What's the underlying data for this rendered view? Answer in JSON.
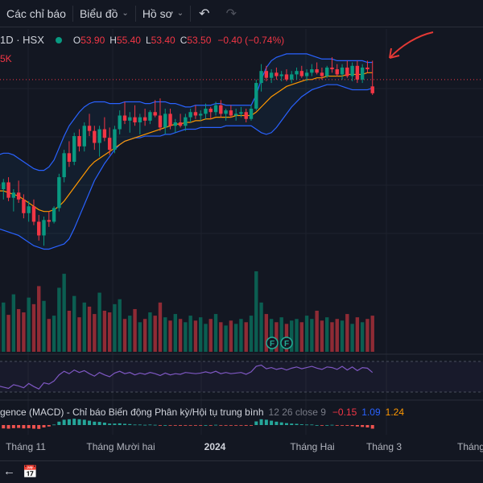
{
  "toolbar": {
    "indicators_label": "Các chỉ báo",
    "chart_label": "Biểu đồ",
    "profile_label": "Hồ sơ",
    "undo_icon": "undo-icon",
    "redo_icon": "redo-icon"
  },
  "legend": {
    "symbol": "1D · HSX",
    "o_key": "O",
    "o_val": "53.90",
    "h_key": "H",
    "h_val": "55.40",
    "l_key": "L",
    "l_val": "53.40",
    "c_key": "C",
    "c_val": "53.50",
    "change": "−0.40 (−0.74%)",
    "volume": "5K",
    "status_color": "#089981"
  },
  "macd": {
    "name": "gence (MACD) - Chỉ báo Biến động Phân kỳ/Hội tụ trung bình",
    "params": "12 26 close 9",
    "hist": "−0.15",
    "macd": "1.09",
    "signal": "1.24"
  },
  "markers": [
    "F",
    "F"
  ],
  "xaxis": [
    {
      "label": "Tháng 11",
      "bold": false
    },
    {
      "label": "Tháng Mười hai",
      "bold": false
    },
    {
      "label": "2024",
      "bold": true
    },
    {
      "label": "Tháng Hai",
      "bold": false
    },
    {
      "label": "Tháng 3",
      "bold": false
    },
    {
      "label": "Tháng",
      "bold": false
    }
  ],
  "colors": {
    "up": "#089981",
    "down": "#f23645",
    "band": "#2962ff",
    "ma": "#ff9800",
    "rsi": "#7e57c2",
    "annotation": "#e53935"
  },
  "chart_data": {
    "type": "candlestick",
    "candles": [
      [
        48.2,
        48.8,
        47.5,
        47.9
      ],
      [
        47.9,
        48.5,
        47.3,
        48.3
      ],
      [
        48.3,
        48.6,
        47.2,
        47.4
      ],
      [
        47.4,
        47.9,
        46.6,
        47.7
      ],
      [
        47.7,
        48.4,
        47.1,
        47.3
      ],
      [
        47.3,
        47.6,
        46.2,
        46.5
      ],
      [
        46.5,
        47.2,
        46.0,
        46.9
      ],
      [
        46.9,
        47.3,
        45.8,
        46.0
      ],
      [
        46.0,
        46.4,
        44.9,
        45.2
      ],
      [
        45.2,
        46.3,
        44.6,
        46.1
      ],
      [
        46.1,
        46.6,
        45.7,
        46.0
      ],
      [
        46.0,
        46.9,
        45.9,
        46.8
      ],
      [
        46.8,
        48.8,
        46.6,
        48.6
      ],
      [
        48.6,
        50.2,
        48.3,
        50.0
      ],
      [
        50.0,
        50.7,
        49.2,
        49.5
      ],
      [
        49.5,
        51.2,
        49.3,
        51.0
      ],
      [
        51.0,
        51.4,
        50.1,
        50.4
      ],
      [
        50.4,
        51.8,
        50.1,
        51.6
      ],
      [
        51.6,
        52.3,
        51.0,
        51.3
      ],
      [
        51.3,
        51.6,
        50.2,
        50.6
      ],
      [
        50.6,
        51.6,
        49.8,
        51.4
      ],
      [
        51.4,
        52.1,
        50.7,
        50.9
      ],
      [
        50.9,
        51.5,
        49.9,
        50.2
      ],
      [
        50.2,
        51.6,
        50.0,
        51.4
      ],
      [
        51.4,
        52.5,
        51.1,
        52.2
      ],
      [
        52.2,
        53.0,
        51.7,
        51.9
      ],
      [
        51.9,
        52.4,
        51.2,
        52.1
      ],
      [
        52.1,
        52.8,
        51.6,
        51.8
      ],
      [
        51.8,
        52.3,
        51.1,
        52.1
      ],
      [
        52.1,
        52.6,
        51.6,
        51.9
      ],
      [
        51.9,
        52.5,
        51.7,
        52.4
      ],
      [
        52.4,
        53.1,
        52.1,
        52.2
      ],
      [
        52.2,
        53.2,
        51.3,
        51.5
      ],
      [
        51.5,
        52.6,
        51.1,
        52.3
      ],
      [
        52.3,
        52.6,
        51.4,
        51.6
      ],
      [
        51.6,
        52.0,
        51.2,
        51.8
      ],
      [
        51.8,
        52.3,
        51.5,
        51.6
      ],
      [
        51.6,
        52.3,
        51.3,
        52.1
      ],
      [
        52.1,
        52.6,
        51.8,
        52.4
      ],
      [
        52.4,
        52.8,
        52.0,
        52.2
      ],
      [
        52.2,
        52.5,
        51.9,
        52.3
      ],
      [
        52.3,
        52.9,
        52.0,
        52.6
      ],
      [
        52.6,
        52.7,
        52.0,
        52.4
      ],
      [
        52.4,
        53.0,
        52.2,
        52.8
      ],
      [
        52.8,
        53.1,
        52.1,
        52.3
      ],
      [
        52.3,
        52.6,
        51.9,
        52.5
      ],
      [
        52.5,
        52.8,
        52.1,
        52.2
      ],
      [
        52.2,
        52.6,
        51.9,
        52.3
      ],
      [
        52.3,
        52.7,
        52.1,
        52.4
      ],
      [
        52.4,
        52.6,
        51.8,
        52.0
      ],
      [
        52.0,
        52.8,
        51.9,
        52.6
      ],
      [
        52.6,
        54.3,
        52.5,
        54.1
      ],
      [
        54.1,
        55.2,
        53.6,
        54.8
      ],
      [
        54.8,
        55.1,
        54.2,
        54.4
      ],
      [
        54.4,
        54.9,
        54.1,
        54.7
      ],
      [
        54.7,
        55.0,
        54.3,
        54.5
      ],
      [
        54.5,
        54.8,
        54.2,
        54.6
      ],
      [
        54.6,
        54.9,
        54.2,
        54.3
      ],
      [
        54.3,
        54.8,
        54.1,
        54.6
      ],
      [
        54.6,
        55.0,
        54.3,
        54.8
      ],
      [
        54.8,
        55.1,
        54.4,
        54.5
      ],
      [
        54.5,
        54.9,
        54.2,
        54.7
      ],
      [
        54.7,
        55.2,
        54.5,
        54.9
      ],
      [
        54.9,
        55.3,
        54.6,
        54.7
      ],
      [
        54.7,
        55.0,
        54.3,
        54.5
      ],
      [
        54.5,
        55.1,
        54.4,
        55.0
      ],
      [
        55.0,
        55.6,
        54.7,
        54.9
      ],
      [
        54.9,
        55.2,
        54.5,
        54.6
      ],
      [
        54.6,
        55.2,
        54.3,
        55.0
      ],
      [
        55.0,
        55.4,
        54.4,
        54.5
      ],
      [
        54.5,
        55.3,
        54.2,
        55.1
      ],
      [
        55.1,
        55.4,
        54.1,
        54.3
      ],
      [
        54.3,
        55.2,
        54.1,
        55.0
      ],
      [
        55.0,
        55.4,
        54.7,
        54.9
      ],
      [
        53.9,
        55.4,
        53.4,
        53.5
      ]
    ],
    "volume": [
      55,
      60,
      45,
      70,
      52,
      48,
      66,
      58,
      80,
      62,
      40,
      44,
      78,
      95,
      50,
      68,
      42,
      60,
      55,
      46,
      72,
      50,
      48,
      58,
      64,
      40,
      44,
      52,
      36,
      40,
      48,
      44,
      60,
      42,
      38,
      46,
      40,
      36,
      44,
      38,
      42,
      34,
      40,
      46,
      36,
      32,
      38,
      34,
      40,
      36,
      44,
      98,
      60,
      46,
      40,
      36,
      42,
      34,
      38,
      40,
      36,
      44,
      40,
      50,
      38,
      42,
      36,
      40,
      38,
      46,
      34,
      42,
      36,
      40,
      44
    ],
    "bollinger": {
      "upper": [
        49.9,
        50.0,
        50.0,
        49.9,
        49.7,
        49.5,
        49.3,
        49.1,
        49.0,
        49.0,
        49.2,
        49.6,
        50.3,
        51.0,
        51.6,
        52.0,
        52.4,
        52.7,
        52.9,
        53.0,
        53.0,
        53.0,
        52.9,
        52.9,
        52.9,
        53.0,
        53.0,
        53.0,
        53.0,
        52.9,
        52.9,
        53.0,
        53.0,
        53.0,
        52.9,
        52.9,
        52.8,
        52.7,
        52.7,
        52.8,
        52.8,
        52.8,
        52.8,
        52.9,
        52.9,
        52.8,
        52.8,
        52.8,
        52.8,
        52.8,
        52.8,
        53.4,
        54.3,
        55.0,
        55.4,
        55.6,
        55.7,
        55.8,
        55.8,
        55.8,
        55.8,
        55.8,
        55.7,
        55.6,
        55.5,
        55.5,
        55.5,
        55.4,
        55.4,
        55.4,
        55.4,
        55.4,
        55.4,
        55.3,
        55.3
      ],
      "lower": [
        45.6,
        45.5,
        45.4,
        45.3,
        45.2,
        45.0,
        44.8,
        44.6,
        44.5,
        44.4,
        44.4,
        44.5,
        44.6,
        44.7,
        45.0,
        45.6,
        46.3,
        47.0,
        47.7,
        48.4,
        48.9,
        49.4,
        49.8,
        50.2,
        50.5,
        50.7,
        50.8,
        50.9,
        50.9,
        51.0,
        51.0,
        51.0,
        51.0,
        51.1,
        51.1,
        51.2,
        51.3,
        51.4,
        51.4,
        51.4,
        51.5,
        51.5,
        51.5,
        51.5,
        51.5,
        51.6,
        51.6,
        51.6,
        51.6,
        51.6,
        51.6,
        51.4,
        51.2,
        51.1,
        51.2,
        51.5,
        51.9,
        52.3,
        52.7,
        53.0,
        53.3,
        53.5,
        53.7,
        53.8,
        53.9,
        54.0,
        54.0,
        54.0,
        53.9,
        53.8,
        53.7,
        53.7,
        53.7,
        53.7,
        53.8
      ],
      "ma": [
        47.8,
        47.8,
        47.7,
        47.6,
        47.5,
        47.3,
        47.1,
        46.9,
        46.7,
        46.6,
        46.6,
        46.7,
        46.9,
        47.2,
        47.6,
        48.0,
        48.4,
        48.8,
        49.2,
        49.5,
        49.7,
        49.9,
        50.1,
        50.3,
        50.5,
        50.7,
        50.8,
        50.9,
        51.0,
        51.1,
        51.2,
        51.3,
        51.4,
        51.5,
        51.6,
        51.7,
        51.7,
        51.8,
        51.8,
        51.9,
        51.9,
        52.0,
        52.0,
        52.1,
        52.1,
        52.1,
        52.1,
        52.2,
        52.2,
        52.2,
        52.2,
        52.4,
        52.7,
        53.0,
        53.3,
        53.5,
        53.7,
        53.9,
        54.0,
        54.1,
        54.2,
        54.3,
        54.3,
        54.4,
        54.4,
        54.5,
        54.5,
        54.5,
        54.5,
        54.6,
        54.6,
        54.6,
        54.6,
        54.7,
        54.7
      ]
    },
    "rsi": [
      40,
      38,
      36,
      42,
      40,
      37,
      44,
      39,
      35,
      45,
      43,
      48,
      58,
      64,
      60,
      66,
      62,
      65,
      60,
      56,
      62,
      58,
      55,
      61,
      64,
      60,
      62,
      58,
      61,
      59,
      62,
      60,
      57,
      61,
      58,
      60,
      59,
      62,
      61,
      60,
      61,
      63,
      61,
      64,
      60,
      62,
      60,
      61,
      62,
      59,
      63,
      72,
      74,
      68,
      70,
      67,
      69,
      66,
      69,
      71,
      68,
      70,
      72,
      69,
      67,
      71,
      70,
      67,
      72,
      66,
      71,
      65,
      70,
      69,
      62
    ],
    "macd_hist": [
      -0.12,
      -0.14,
      -0.15,
      -0.13,
      -0.12,
      -0.14,
      -0.13,
      -0.15,
      -0.16,
      -0.1,
      -0.06,
      0.02,
      0.14,
      0.22,
      0.24,
      0.26,
      0.24,
      0.22,
      0.18,
      0.14,
      0.13,
      0.1,
      0.06,
      0.06,
      0.07,
      0.05,
      0.04,
      0.02,
      0.02,
      0.01,
      0.02,
      0.01,
      -0.02,
      0.0,
      -0.02,
      -0.02,
      -0.03,
      -0.02,
      -0.01,
      -0.02,
      -0.01,
      0.0,
      -0.01,
      0.01,
      -0.01,
      -0.01,
      -0.02,
      -0.02,
      -0.02,
      -0.03,
      -0.01,
      0.15,
      0.24,
      0.22,
      0.18,
      0.14,
      0.11,
      0.08,
      0.06,
      0.05,
      0.03,
      0.02,
      0.02,
      0.0,
      -0.01,
      0.0,
      0.01,
      -0.02,
      -0.01,
      -0.03,
      -0.04,
      -0.06,
      -0.08,
      -0.1,
      -0.15
    ],
    "price_line": 54.3,
    "ylim": [
      44.0,
      56.5
    ]
  }
}
